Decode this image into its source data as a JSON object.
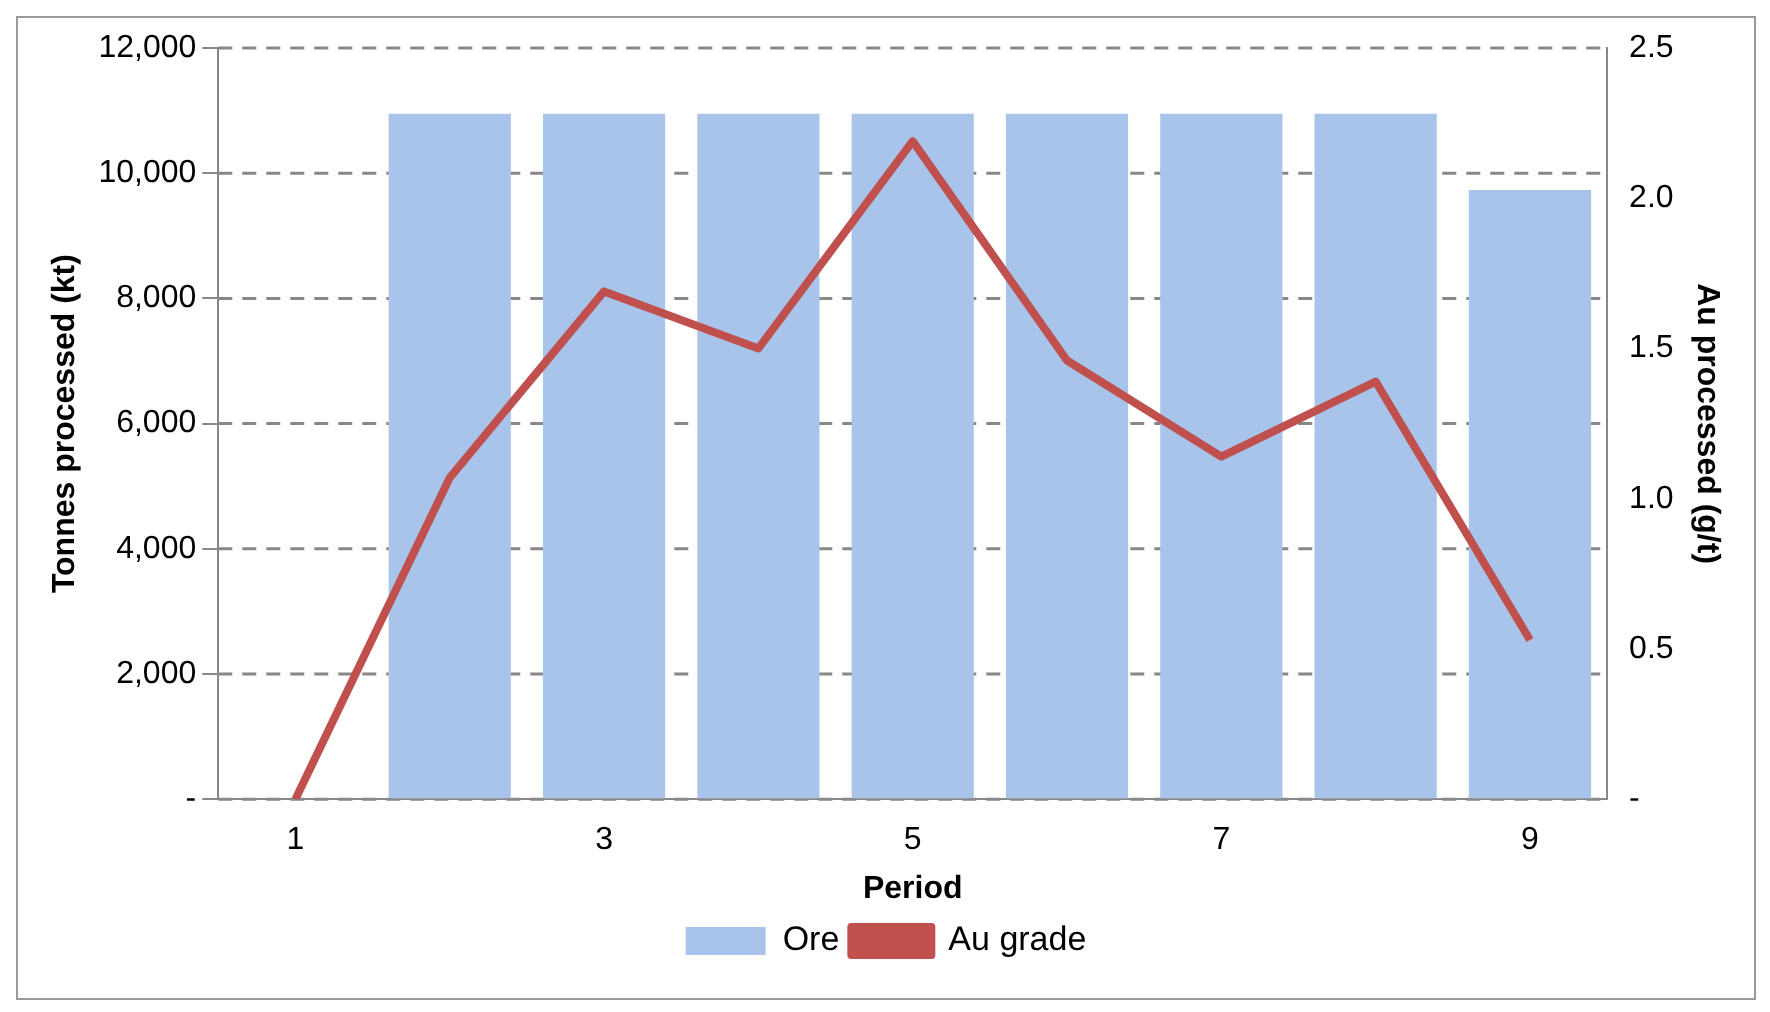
{
  "chart_data": {
    "type": "bar",
    "xlabel": "Period",
    "ylabel": "Tonnes processed (kt)",
    "y2label": "Au processed (g/t)",
    "categories": [
      "1",
      null,
      "3",
      null,
      "5",
      null,
      "7",
      null,
      "9"
    ],
    "series": [
      {
        "name": "Ore",
        "color": "#a9c4ea",
        "values": [
          0,
          10950,
          10950,
          10950,
          10950,
          10950,
          10950,
          10950,
          9730
        ]
      },
      {
        "name": "Au grade",
        "type": "line",
        "axis": "y2",
        "color": "#c0504d",
        "values": [
          0,
          1.07,
          1.69,
          1.5,
          2.19,
          1.46,
          1.14,
          1.39,
          0.53
        ]
      }
    ],
    "ylim": [
      0,
      12000
    ],
    "yticks": [
      {
        "value": 0,
        "label": "-"
      },
      {
        "value": 2000,
        "label": "2,000"
      },
      {
        "value": 4000,
        "label": "4,000"
      },
      {
        "value": 6000,
        "label": "6,000"
      },
      {
        "value": 8000,
        "label": "8,000"
      },
      {
        "value": 10000,
        "label": "10,000"
      },
      {
        "value": 12000,
        "label": "12,000"
      }
    ],
    "y2lim": [
      0,
      2.5
    ],
    "y2ticks": [
      {
        "value": 0,
        "label": "-"
      },
      {
        "value": 0.5,
        "label": "0.5"
      },
      {
        "value": 1,
        "label": "1.0"
      },
      {
        "value": 1.5,
        "label": "1.5"
      },
      {
        "value": 2,
        "label": "2.0"
      },
      {
        "value": 2.5,
        "label": "2.5"
      }
    ],
    "grid": "y",
    "legend": "bottom",
    "line_style": "solid",
    "marker": "none"
  }
}
